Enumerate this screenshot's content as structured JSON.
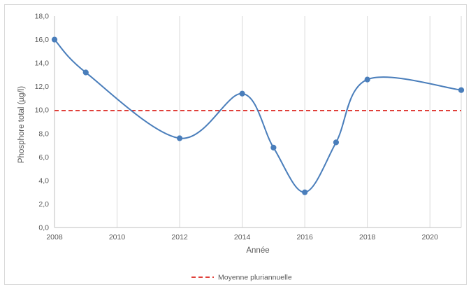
{
  "chart_data": {
    "type": "line",
    "title": "",
    "xlabel": "Année",
    "ylabel": "Phosphore total (µg/l)",
    "xlim": [
      2008,
      2021
    ],
    "ylim": [
      0,
      18
    ],
    "x_ticks": [
      2008,
      2010,
      2012,
      2014,
      2016,
      2018,
      2020
    ],
    "y_ticks": [
      0,
      2,
      4,
      6,
      8,
      10,
      12,
      14,
      16,
      18
    ],
    "y_tick_labels": [
      "0,0",
      "2,0",
      "4,0",
      "6,0",
      "8,0",
      "10,0",
      "12,0",
      "14,0",
      "16,0",
      "18,0"
    ],
    "grid": "vertical",
    "legend_position": "bottom",
    "series": [
      {
        "values_x": [
          2008,
          2009,
          2012,
          2014,
          2015,
          2016,
          2017,
          2018,
          2021
        ],
        "values_y": [
          16.0,
          13.2,
          7.6,
          11.4,
          6.8,
          3.0,
          7.25,
          12.6,
          11.7
        ],
        "color": "#4a7ebb",
        "style": "smooth-line-markers"
      }
    ],
    "reference_line": {
      "name": "Moyenne pluriannuelle",
      "value": 9.95,
      "color": "#e0403a",
      "style": "dashed"
    }
  }
}
